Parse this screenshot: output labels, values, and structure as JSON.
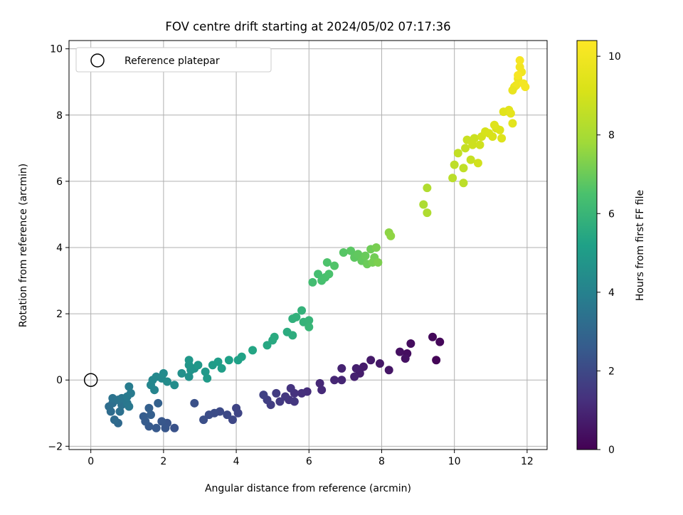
{
  "chart_data": {
    "type": "scatter",
    "title": "FOV centre drift starting at 2024/05/02 07:17:36",
    "xlabel": "Angular distance from reference (arcmin)",
    "ylabel": "Rotation from reference (arcmin)",
    "xlim": [
      -0.6,
      12.55
    ],
    "ylim": [
      -2.1,
      10.25
    ],
    "xticks": [
      0,
      2,
      4,
      6,
      8,
      10,
      12
    ],
    "yticks": [
      -2,
      0,
      2,
      4,
      6,
      8,
      10
    ],
    "grid": true,
    "legend": {
      "position": "top-left",
      "entries": [
        "Reference platepar"
      ]
    },
    "reference_point": {
      "x": 0,
      "y": 0,
      "label": "Reference platepar"
    },
    "colorbar": {
      "label": "Hours from first FF file",
      "colormap": "viridis",
      "range": [
        0,
        10.4
      ],
      "ticks": [
        0,
        2,
        4,
        6,
        8,
        10
      ]
    },
    "points": [
      {
        "x": 9.5,
        "y": 0.6,
        "c": 0.1
      },
      {
        "x": 9.6,
        "y": 1.15,
        "c": 0.15
      },
      {
        "x": 9.4,
        "y": 1.3,
        "c": 0.2
      },
      {
        "x": 8.8,
        "y": 1.1,
        "c": 0.3
      },
      {
        "x": 8.7,
        "y": 0.8,
        "c": 0.35
      },
      {
        "x": 8.5,
        "y": 0.85,
        "c": 0.4
      },
      {
        "x": 8.65,
        "y": 0.65,
        "c": 0.45
      },
      {
        "x": 8.2,
        "y": 0.3,
        "c": 0.55
      },
      {
        "x": 7.95,
        "y": 0.5,
        "c": 0.6
      },
      {
        "x": 7.7,
        "y": 0.6,
        "c": 0.65
      },
      {
        "x": 7.5,
        "y": 0.4,
        "c": 0.7
      },
      {
        "x": 7.4,
        "y": 0.2,
        "c": 0.75
      },
      {
        "x": 7.3,
        "y": 0.35,
        "c": 0.8
      },
      {
        "x": 7.25,
        "y": 0.1,
        "c": 0.85
      },
      {
        "x": 6.9,
        "y": 0.35,
        "c": 0.9
      },
      {
        "x": 6.9,
        "y": 0.0,
        "c": 0.95
      },
      {
        "x": 6.7,
        "y": 0.0,
        "c": 1.0
      },
      {
        "x": 6.3,
        "y": -0.1,
        "c": 1.05
      },
      {
        "x": 6.35,
        "y": -0.3,
        "c": 1.1
      },
      {
        "x": 5.95,
        "y": -0.35,
        "c": 1.2
      },
      {
        "x": 5.8,
        "y": -0.4,
        "c": 1.25
      },
      {
        "x": 5.6,
        "y": -0.4,
        "c": 1.3
      },
      {
        "x": 5.5,
        "y": -0.25,
        "c": 1.35
      },
      {
        "x": 5.45,
        "y": -0.6,
        "c": 1.4
      },
      {
        "x": 5.6,
        "y": -0.65,
        "c": 1.45
      },
      {
        "x": 5.35,
        "y": -0.5,
        "c": 1.5
      },
      {
        "x": 5.2,
        "y": -0.65,
        "c": 1.55
      },
      {
        "x": 5.1,
        "y": -0.4,
        "c": 1.6
      },
      {
        "x": 4.95,
        "y": -0.75,
        "c": 1.65
      },
      {
        "x": 4.85,
        "y": -0.6,
        "c": 1.7
      },
      {
        "x": 4.75,
        "y": -0.45,
        "c": 1.75
      },
      {
        "x": 4.0,
        "y": -0.85,
        "c": 1.85
      },
      {
        "x": 4.05,
        "y": -1.0,
        "c": 1.9
      },
      {
        "x": 3.9,
        "y": -1.2,
        "c": 1.95
      },
      {
        "x": 3.75,
        "y": -1.05,
        "c": 2.0
      },
      {
        "x": 3.55,
        "y": -0.95,
        "c": 2.05
      },
      {
        "x": 3.4,
        "y": -1.0,
        "c": 2.1
      },
      {
        "x": 3.25,
        "y": -1.05,
        "c": 2.15
      },
      {
        "x": 3.1,
        "y": -1.2,
        "c": 2.2
      },
      {
        "x": 2.85,
        "y": -0.7,
        "c": 2.25
      },
      {
        "x": 2.3,
        "y": -1.45,
        "c": 2.3
      },
      {
        "x": 2.1,
        "y": -1.3,
        "c": 2.35
      },
      {
        "x": 2.05,
        "y": -1.45,
        "c": 2.4
      },
      {
        "x": 1.95,
        "y": -1.25,
        "c": 2.45
      },
      {
        "x": 1.8,
        "y": -1.45,
        "c": 2.5
      },
      {
        "x": 1.6,
        "y": -1.4,
        "c": 2.55
      },
      {
        "x": 1.5,
        "y": -1.25,
        "c": 2.6
      },
      {
        "x": 1.45,
        "y": -1.1,
        "c": 2.65
      },
      {
        "x": 1.65,
        "y": -1.05,
        "c": 2.7
      },
      {
        "x": 1.6,
        "y": -0.85,
        "c": 2.75
      },
      {
        "x": 1.85,
        "y": -0.7,
        "c": 2.8
      },
      {
        "x": 0.75,
        "y": -1.3,
        "c": 3.1
      },
      {
        "x": 0.65,
        "y": -1.2,
        "c": 3.15
      },
      {
        "x": 0.55,
        "y": -0.95,
        "c": 3.2
      },
      {
        "x": 0.5,
        "y": -0.8,
        "c": 3.25
      },
      {
        "x": 0.6,
        "y": -0.7,
        "c": 3.3
      },
      {
        "x": 0.8,
        "y": -0.95,
        "c": 3.35
      },
      {
        "x": 0.85,
        "y": -0.75,
        "c": 3.4
      },
      {
        "x": 0.6,
        "y": -0.55,
        "c": 3.45
      },
      {
        "x": 0.75,
        "y": -0.6,
        "c": 3.5
      },
      {
        "x": 0.85,
        "y": -0.55,
        "c": 3.55
      },
      {
        "x": 1.0,
        "y": -0.7,
        "c": 3.6
      },
      {
        "x": 1.05,
        "y": -0.8,
        "c": 3.65
      },
      {
        "x": 1.0,
        "y": -0.5,
        "c": 3.7
      },
      {
        "x": 1.1,
        "y": -0.4,
        "c": 3.75
      },
      {
        "x": 1.05,
        "y": -0.2,
        "c": 3.8
      },
      {
        "x": 1.75,
        "y": -0.3,
        "c": 4.1
      },
      {
        "x": 1.65,
        "y": -0.15,
        "c": 4.15
      },
      {
        "x": 1.7,
        "y": 0.0,
        "c": 4.2
      },
      {
        "x": 1.8,
        "y": 0.1,
        "c": 4.25
      },
      {
        "x": 1.95,
        "y": 0.05,
        "c": 4.3
      },
      {
        "x": 2.0,
        "y": 0.2,
        "c": 4.35
      },
      {
        "x": 2.1,
        "y": -0.05,
        "c": 4.4
      },
      {
        "x": 2.3,
        "y": -0.15,
        "c": 4.45
      },
      {
        "x": 2.5,
        "y": 0.2,
        "c": 4.55
      },
      {
        "x": 2.7,
        "y": 0.1,
        "c": 4.6
      },
      {
        "x": 2.75,
        "y": 0.3,
        "c": 4.65
      },
      {
        "x": 2.85,
        "y": 0.35,
        "c": 4.7
      },
      {
        "x": 2.7,
        "y": 0.45,
        "c": 4.75
      },
      {
        "x": 2.7,
        "y": 0.6,
        "c": 4.8
      },
      {
        "x": 2.95,
        "y": 0.45,
        "c": 4.85
      },
      {
        "x": 3.15,
        "y": 0.25,
        "c": 4.9
      },
      {
        "x": 3.2,
        "y": 0.05,
        "c": 4.95
      },
      {
        "x": 3.35,
        "y": 0.45,
        "c": 5.0
      },
      {
        "x": 3.5,
        "y": 0.55,
        "c": 5.05
      },
      {
        "x": 3.6,
        "y": 0.35,
        "c": 5.1
      },
      {
        "x": 3.8,
        "y": 0.6,
        "c": 5.15
      },
      {
        "x": 4.05,
        "y": 0.6,
        "c": 5.2
      },
      {
        "x": 4.15,
        "y": 0.7,
        "c": 5.25
      },
      {
        "x": 4.45,
        "y": 0.9,
        "c": 5.35
      },
      {
        "x": 4.85,
        "y": 1.05,
        "c": 5.45
      },
      {
        "x": 5.0,
        "y": 1.2,
        "c": 5.5
      },
      {
        "x": 5.05,
        "y": 1.3,
        "c": 5.55
      },
      {
        "x": 5.4,
        "y": 1.45,
        "c": 5.6
      },
      {
        "x": 5.55,
        "y": 1.35,
        "c": 5.65
      },
      {
        "x": 5.55,
        "y": 1.85,
        "c": 5.75
      },
      {
        "x": 5.65,
        "y": 1.9,
        "c": 5.8
      },
      {
        "x": 5.8,
        "y": 2.1,
        "c": 5.85
      },
      {
        "x": 5.85,
        "y": 1.75,
        "c": 5.9
      },
      {
        "x": 6.0,
        "y": 1.8,
        "c": 5.95
      },
      {
        "x": 6.0,
        "y": 1.6,
        "c": 6.0
      },
      {
        "x": 6.1,
        "y": 2.95,
        "c": 6.3
      },
      {
        "x": 6.25,
        "y": 3.2,
        "c": 6.35
      },
      {
        "x": 6.35,
        "y": 3.0,
        "c": 6.4
      },
      {
        "x": 6.45,
        "y": 3.1,
        "c": 6.45
      },
      {
        "x": 6.55,
        "y": 3.2,
        "c": 6.5
      },
      {
        "x": 6.5,
        "y": 3.55,
        "c": 6.55
      },
      {
        "x": 6.7,
        "y": 3.45,
        "c": 6.6
      },
      {
        "x": 6.95,
        "y": 3.85,
        "c": 6.7
      },
      {
        "x": 7.15,
        "y": 3.9,
        "c": 6.75
      },
      {
        "x": 7.25,
        "y": 3.7,
        "c": 6.8
      },
      {
        "x": 7.35,
        "y": 3.8,
        "c": 6.85
      },
      {
        "x": 7.45,
        "y": 3.6,
        "c": 6.9
      },
      {
        "x": 7.55,
        "y": 3.75,
        "c": 6.95
      },
      {
        "x": 7.6,
        "y": 3.5,
        "c": 7.0
      },
      {
        "x": 7.7,
        "y": 3.95,
        "c": 7.05
      },
      {
        "x": 7.8,
        "y": 3.7,
        "c": 7.1
      },
      {
        "x": 7.75,
        "y": 3.55,
        "c": 7.15
      },
      {
        "x": 7.85,
        "y": 4.0,
        "c": 7.2
      },
      {
        "x": 7.9,
        "y": 3.55,
        "c": 7.25
      },
      {
        "x": 8.2,
        "y": 4.45,
        "c": 7.5
      },
      {
        "x": 8.25,
        "y": 4.35,
        "c": 7.55
      },
      {
        "x": 9.15,
        "y": 5.3,
        "c": 8.1
      },
      {
        "x": 9.25,
        "y": 5.05,
        "c": 8.15
      },
      {
        "x": 9.25,
        "y": 5.8,
        "c": 8.2
      },
      {
        "x": 9.95,
        "y": 6.1,
        "c": 8.4
      },
      {
        "x": 10.25,
        "y": 5.95,
        "c": 8.45
      },
      {
        "x": 10.0,
        "y": 6.5,
        "c": 8.5
      },
      {
        "x": 10.25,
        "y": 6.4,
        "c": 8.55
      },
      {
        "x": 10.1,
        "y": 6.85,
        "c": 8.6
      },
      {
        "x": 10.3,
        "y": 7.0,
        "c": 8.65
      },
      {
        "x": 10.45,
        "y": 6.65,
        "c": 8.7
      },
      {
        "x": 10.35,
        "y": 7.25,
        "c": 8.75
      },
      {
        "x": 10.55,
        "y": 7.3,
        "c": 8.8
      },
      {
        "x": 10.5,
        "y": 7.1,
        "c": 8.85
      },
      {
        "x": 10.7,
        "y": 7.1,
        "c": 8.9
      },
      {
        "x": 10.65,
        "y": 6.55,
        "c": 8.95
      },
      {
        "x": 10.75,
        "y": 7.35,
        "c": 9.0
      },
      {
        "x": 10.85,
        "y": 7.5,
        "c": 9.05
      },
      {
        "x": 10.95,
        "y": 7.45,
        "c": 9.1
      },
      {
        "x": 11.05,
        "y": 7.35,
        "c": 9.15
      },
      {
        "x": 11.15,
        "y": 7.6,
        "c": 9.2
      },
      {
        "x": 11.25,
        "y": 7.55,
        "c": 9.25
      },
      {
        "x": 11.3,
        "y": 7.3,
        "c": 9.3
      },
      {
        "x": 11.1,
        "y": 7.7,
        "c": 9.35
      },
      {
        "x": 11.35,
        "y": 8.1,
        "c": 9.4
      },
      {
        "x": 11.5,
        "y": 8.15,
        "c": 9.45
      },
      {
        "x": 11.6,
        "y": 7.75,
        "c": 9.5
      },
      {
        "x": 11.55,
        "y": 8.05,
        "c": 9.55
      },
      {
        "x": 11.65,
        "y": 8.85,
        "c": 9.75
      },
      {
        "x": 11.75,
        "y": 9.1,
        "c": 9.85
      },
      {
        "x": 11.7,
        "y": 8.9,
        "c": 9.9
      },
      {
        "x": 11.85,
        "y": 9.3,
        "c": 9.95
      },
      {
        "x": 11.8,
        "y": 9.45,
        "c": 10.0
      },
      {
        "x": 11.9,
        "y": 8.95,
        "c": 10.05
      },
      {
        "x": 11.95,
        "y": 8.85,
        "c": 10.1
      },
      {
        "x": 11.8,
        "y": 9.65,
        "c": 10.15
      },
      {
        "x": 11.75,
        "y": 9.2,
        "c": 10.2
      },
      {
        "x": 11.6,
        "y": 8.75,
        "c": 9.7
      }
    ]
  }
}
